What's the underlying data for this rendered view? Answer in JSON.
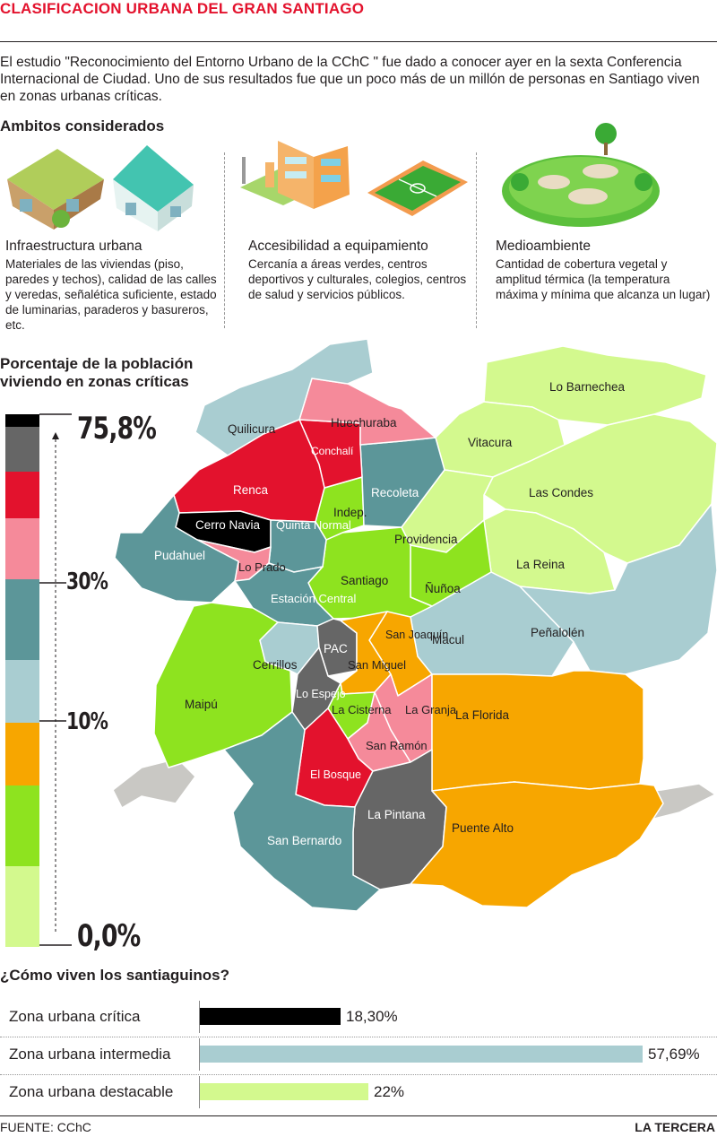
{
  "header": {
    "title": "CLASIFICACION URBANA DEL GRAN SANTIAGO",
    "intro": "El estudio \"Reconocimiento del Entorno Urbano de la CChC \" fue dado a conocer ayer en la sexta Conferencia Internacional de Ciudad. Uno de sus resultados fue que un poco más de un millón de personas en Santiago viven en zonas urbanas críticas."
  },
  "ambitos": {
    "heading": "Ambitos considerados",
    "items": [
      {
        "title": "Infraestructura urbana",
        "desc": "Materiales de las viviendas (piso, paredes y techos), calidad de las calles y veredas, señalética suficiente, estado de luminarias, paraderos y basureros, etc.",
        "icon": "houses-icon"
      },
      {
        "title": "Accesibilidad a equipamiento",
        "desc": "Cercanía a áreas verdes, centros deportivos y culturales, colegios, centros de salud y servicios públicos.",
        "icon": "school-stadium-icon"
      },
      {
        "title": "Medioambiente",
        "desc": "Cantidad de cobertura vegetal y amplitud térmica (la temperatura máxima y mínima que alcanza un lugar)",
        "icon": "park-icon"
      }
    ]
  },
  "legend": {
    "heading_line1": "Porcentaje de la población",
    "heading_line2": "viviendo en zonas críticas",
    "max_label": "75,8%",
    "mid1_label": "30%",
    "mid2_label": "10%",
    "min_label": "0,0%",
    "colors": [
      "#000000",
      "#666666",
      "#e3122d",
      "#f58a9a",
      "#5c9699",
      "#a9cdd1",
      "#f7a600",
      "#8ee31f",
      "#d3f98e"
    ]
  },
  "map": {
    "communes": [
      {
        "name": "Lo Barnechea",
        "color": "#d3f98e"
      },
      {
        "name": "Vitacura",
        "color": "#d3f98e"
      },
      {
        "name": "Las Condes",
        "color": "#d3f98e"
      },
      {
        "name": "La Reina",
        "color": "#d3f98e"
      },
      {
        "name": "Providencia",
        "color": "#d3f98e"
      },
      {
        "name": "Peñalolén",
        "color": "#a9cdd1"
      },
      {
        "name": "Macul",
        "color": "#a9cdd1"
      },
      {
        "name": "Ñuñoa",
        "color": "#8ee31f"
      },
      {
        "name": "Santiago",
        "color": "#8ee31f"
      },
      {
        "name": "Indep.",
        "color": "#8ee31f"
      },
      {
        "name": "Recoleta",
        "color": "#5c9699"
      },
      {
        "name": "Conchalí",
        "color": "#e3122d"
      },
      {
        "name": "Huechuraba",
        "color": "#f58a9a"
      },
      {
        "name": "Quilicura",
        "color": "#a9cdd1"
      },
      {
        "name": "Renca",
        "color": "#e3122d"
      },
      {
        "name": "Cerro Navia",
        "color": "#000000"
      },
      {
        "name": "Quinta Normal",
        "color": "#5c9699"
      },
      {
        "name": "Lo Prado",
        "color": "#f58a9a"
      },
      {
        "name": "Pudahuel",
        "color": "#5c9699"
      },
      {
        "name": "Estación Central",
        "color": "#5c9699"
      },
      {
        "name": "Maipú",
        "color": "#8ee31f"
      },
      {
        "name": "Cerrillos",
        "color": "#a9cdd1"
      },
      {
        "name": "PAC",
        "color": "#666666"
      },
      {
        "name": "Lo Espejo",
        "color": "#666666"
      },
      {
        "name": "San Joaquín",
        "color": "#f7a600"
      },
      {
        "name": "San Miguel",
        "color": "#f7a600"
      },
      {
        "name": "La Cisterna",
        "color": "#8ee31f"
      },
      {
        "name": "La Granja",
        "color": "#f58a9a"
      },
      {
        "name": "San Ramón",
        "color": "#f58a9a"
      },
      {
        "name": "El Bosque",
        "color": "#e3122d"
      },
      {
        "name": "La Florida",
        "color": "#f7a600"
      },
      {
        "name": "La Pintana",
        "color": "#666666"
      },
      {
        "name": "Puente Alto",
        "color": "#f7a600"
      },
      {
        "name": "San Bernardo",
        "color": "#5c9699"
      }
    ]
  },
  "how": {
    "heading": "¿Cómo viven los santiaguinos?",
    "rows": [
      {
        "label": "Zona urbana crítica",
        "value": 18.3,
        "value_label": "18,30%",
        "color": "#000000"
      },
      {
        "label": "Zona urbana intermedia",
        "value": 57.69,
        "value_label": "57,69%",
        "color": "#a9cdd1"
      },
      {
        "label": "Zona urbana destacable",
        "value": 22,
        "value_label": "22%",
        "color": "#d3f98e"
      }
    ]
  },
  "footer": {
    "source": "FUENTE: CChC",
    "brand": "LA TERCERA"
  }
}
